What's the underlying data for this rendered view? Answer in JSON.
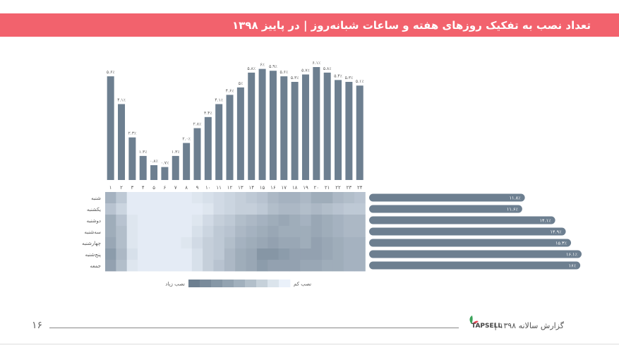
{
  "title": "تعداد نصب به تفکیک روزهای هفته و ساعات شبانه‌روز | در پاییز ۱۳۹۸",
  "chart_data": [
    {
      "type": "bar",
      "categories": [
        "۱",
        "۲",
        "۳",
        "۴",
        "۵",
        "۶",
        "۷",
        "۸",
        "۹",
        "۱۰",
        "۱۱",
        "۱۲",
        "۱۳",
        "۱۴",
        "۱۵",
        "۱۶",
        "۱۷",
        "۱۸",
        "۱۹",
        "۲۰",
        "۲۱",
        "۲۲",
        "۲۳",
        "۲۴"
      ],
      "values": [
        5.6,
        4.1,
        2.3,
        1.3,
        0.8,
        0.7,
        1.3,
        2.0,
        2.8,
        3.4,
        4.1,
        4.6,
        5.0,
        5.8,
        6.0,
        5.9,
        5.6,
        5.3,
        5.7,
        6.1,
        5.8,
        5.4,
        5.3,
        5.1
      ],
      "labels": [
        "۵.۶٪",
        "۴.۱٪",
        "۲.۳٪",
        "۱.۳٪",
        "۰.۸٪",
        "۰.۷٪",
        "۱.۳٪",
        "۲.۰٪",
        "۲.۸٪",
        "۳.۴٪",
        "۴.۱٪",
        "۴.۶٪",
        "۵٪",
        "۵.۸٪",
        "۶٪",
        "۵.۹٪",
        "۵.۶٪",
        "۵.۳٪",
        "۵.۷٪",
        "۶.۱٪",
        "۵.۸٪",
        "۵.۴٪",
        "۵.۳٪",
        "۵.۱٪"
      ],
      "ylim": [
        0,
        6.1
      ],
      "color": "#6d7f90"
    },
    {
      "type": "heatmap",
      "rows": [
        "شنبه",
        "یکشنبه",
        "دوشنبه",
        "سه‌شنبه",
        "چهارشنبه",
        "پنج‌شنبه",
        "جمعه"
      ],
      "columns": [
        "۱",
        "۲",
        "۳",
        "۴",
        "۵",
        "۶",
        "۷",
        "۸",
        "۹",
        "۱۰",
        "۱۱",
        "۱۲",
        "۱۳",
        "۱۴",
        "۱۵",
        "۱۶",
        "۱۷",
        "۱۸",
        "۱۹",
        "۲۰",
        "۲۱",
        "۲۲",
        "۲۳",
        "۲۴"
      ],
      "values": [
        [
          0.55,
          0.35,
          0.05,
          0.05,
          0.05,
          0.05,
          0.05,
          0.05,
          0.1,
          0.15,
          0.2,
          0.25,
          0.3,
          0.35,
          0.4,
          0.5,
          0.55,
          0.55,
          0.5,
          0.6,
          0.6,
          0.5,
          0.45,
          0.4
        ],
        [
          0.4,
          0.25,
          0.05,
          0.05,
          0.05,
          0.05,
          0.05,
          0.05,
          0.05,
          0.1,
          0.2,
          0.25,
          0.3,
          0.3,
          0.35,
          0.45,
          0.5,
          0.5,
          0.45,
          0.5,
          0.45,
          0.4,
          0.35,
          0.35
        ],
        [
          0.6,
          0.4,
          0.1,
          0.05,
          0.05,
          0.05,
          0.05,
          0.05,
          0.1,
          0.2,
          0.3,
          0.35,
          0.45,
          0.5,
          0.55,
          0.6,
          0.65,
          0.6,
          0.55,
          0.65,
          0.6,
          0.55,
          0.5,
          0.5
        ],
        [
          0.6,
          0.45,
          0.1,
          0.05,
          0.05,
          0.05,
          0.05,
          0.05,
          0.15,
          0.25,
          0.35,
          0.4,
          0.5,
          0.55,
          0.6,
          0.65,
          0.6,
          0.6,
          0.6,
          0.65,
          0.6,
          0.55,
          0.5,
          0.5
        ],
        [
          0.65,
          0.45,
          0.1,
          0.05,
          0.05,
          0.05,
          0.05,
          0.1,
          0.2,
          0.3,
          0.35,
          0.45,
          0.55,
          0.6,
          0.65,
          0.7,
          0.65,
          0.65,
          0.6,
          0.7,
          0.65,
          0.6,
          0.55,
          0.55
        ],
        [
          0.75,
          0.5,
          0.15,
          0.05,
          0.05,
          0.05,
          0.05,
          0.05,
          0.15,
          0.3,
          0.35,
          0.5,
          0.6,
          0.65,
          0.8,
          0.8,
          0.75,
          0.7,
          0.7,
          0.7,
          0.65,
          0.6,
          0.55,
          0.55
        ],
        [
          0.7,
          0.45,
          0.1,
          0.05,
          0.05,
          0.05,
          0.05,
          0.05,
          0.15,
          0.3,
          0.4,
          0.5,
          0.6,
          0.65,
          0.75,
          0.7,
          0.7,
          0.7,
          0.65,
          0.65,
          0.6,
          0.6,
          0.55,
          0.55
        ]
      ],
      "color_low": "#eaf1fa",
      "color_high": "#6d7f90"
    },
    {
      "type": "bar",
      "orientation": "horizontal",
      "categories": [
        "شنبه",
        "یکشنبه",
        "دوشنبه",
        "سه‌شنبه",
        "چهارشنبه",
        "پنج‌شنبه",
        "جمعه"
      ],
      "values": [
        11.8,
        11.6,
        14.1,
        14.9,
        15.3,
        16.1,
        16.0
      ],
      "labels": [
        "۱۱.۸٪",
        "۱۱.۶٪",
        "۱۴.۱٪",
        "۱۴.۹٪",
        "۱۵.۳٪",
        "۱۶.۱٪",
        "۱۶٪"
      ],
      "xlim": [
        0,
        16.1
      ],
      "color": "#6d7f90"
    }
  ],
  "legend": {
    "low_label": "نصب کم",
    "high_label": "نصب زیاد",
    "swatches": [
      "#6d7f90",
      "#7a8b9b",
      "#8697a6",
      "#93a3b1",
      "#a1b0bd",
      "#b2bfca",
      "#c6d1da",
      "#dbe4ec",
      "#eaf1fa"
    ]
  },
  "footer": {
    "page_number": "۱۶",
    "report_text": "گزارش سالانه ۱۳۹۸ |",
    "logo_text": "TAPSELL"
  }
}
